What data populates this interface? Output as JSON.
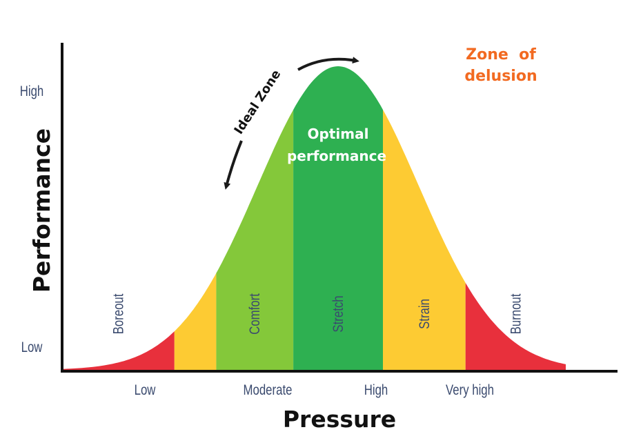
{
  "chart_data": {
    "type": "area",
    "xlabel": "Pressure",
    "ylabel": "Performance",
    "x_ticks": [
      "Low",
      "Moderate",
      "High",
      "Very high"
    ],
    "y_ticks": [
      "Low",
      "High"
    ],
    "zones": [
      {
        "label": "Boreout",
        "color": "#e8303c",
        "x_start": 0.0,
        "x_end": 0.223,
        "label_color": "#3a4a6e"
      },
      {
        "label": "",
        "color": "#fdcb33",
        "x_start": 0.223,
        "x_end": 0.306,
        "label_color": "#3a4a6e"
      },
      {
        "label": "Comfort",
        "color": "#84c83a",
        "x_start": 0.306,
        "x_end": 0.459,
        "label_color": "#3a4a6e"
      },
      {
        "label": "Stretch",
        "color": "#2eb051",
        "x_start": 0.459,
        "x_end": 0.637,
        "label_color": "#3a4a6e"
      },
      {
        "label": "Strain",
        "color": "#fdcb33",
        "x_start": 0.637,
        "x_end": 0.801,
        "label_color": "#3a4a6e"
      },
      {
        "label": "Burnout",
        "color": "#e8303c",
        "x_start": 0.801,
        "x_end": 1.0,
        "label_color": "#3a4a6e"
      }
    ],
    "curve": {
      "shape": "gaussian",
      "peak_x": 0.548,
      "spread": 0.16
    },
    "annotations": {
      "ideal_zone": "Ideal Zone",
      "optimal_line1": "Optimal",
      "optimal_line2": "performance",
      "delusion_line1": "Zone  of",
      "delusion_line2": "delusion"
    },
    "colors": {
      "axis": "#111111",
      "tick_text": "#3a4a6e",
      "delusion": "#f26a21",
      "optimal_text": "#ffffff",
      "arrow": "#1a1a1a"
    }
  }
}
